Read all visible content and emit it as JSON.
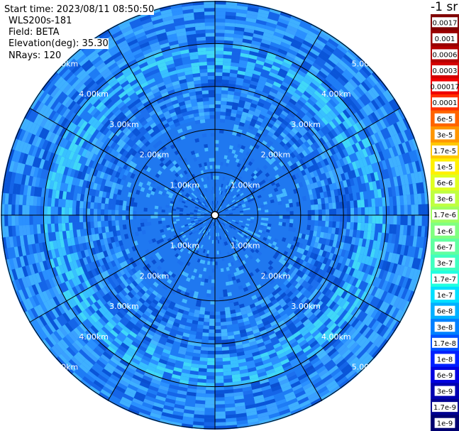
{
  "info": {
    "start_time": "Start time: 2023/08/11 08:50:50",
    "instrument": "WLS200s-181",
    "field": "Field: BETA",
    "elevation": "Elevation(deg): 35.30",
    "nrays": "NRays: 120"
  },
  "chart_data": {
    "type": "heatmap",
    "projection": "polar-ppi",
    "field": "BETA",
    "elevation_deg": 35.3,
    "n_rays": 120,
    "max_range_km": 5.0,
    "range_rings_km": [
      1.0,
      2.0,
      3.0,
      4.0,
      5.0
    ],
    "ring_labels": [
      "1.00km",
      "2.00km",
      "3.00km",
      "4.00km",
      "5.00km"
    ],
    "spokes_deg": [
      0,
      30,
      60,
      90,
      120,
      150,
      180,
      210,
      240,
      270,
      300,
      330
    ],
    "colorbar": {
      "unit_title": "-1 sr",
      "labels": [
        "0.0017",
        "0.001",
        "0.0006",
        "0.0003",
        "0.00017",
        "0.0001",
        "6e-5",
        "3e-5",
        "1.7e-5",
        "1e-5",
        "6e-6",
        "3e-6",
        "1.7e-6",
        "1e-6",
        "6e-7",
        "3e-7",
        "1.7e-7",
        "1e-7",
        "6e-8",
        "3e-8",
        "1.7e-8",
        "1e-8",
        "6e-9",
        "3e-9",
        "1.7e-9",
        "1e-9"
      ],
      "colors": [
        "#800000",
        "#9a0000",
        "#b40000",
        "#d40000",
        "#f00000",
        "#ff3000",
        "#ff6400",
        "#ff9600",
        "#ffc800",
        "#fff000",
        "#e0ff20",
        "#bfff40",
        "#9fff60",
        "#80ff80",
        "#60ffa0",
        "#40ffc0",
        "#20ffe0",
        "#00e0ff",
        "#00b0ff",
        "#0080ff",
        "#0050ff",
        "#0020ff",
        "#0000e0",
        "#0000b0",
        "#000090",
        "#000070"
      ]
    },
    "dominant_levels": [
      "1e-7",
      "6e-8",
      "3e-8"
    ],
    "highlight_ring_km": 3.6
  }
}
